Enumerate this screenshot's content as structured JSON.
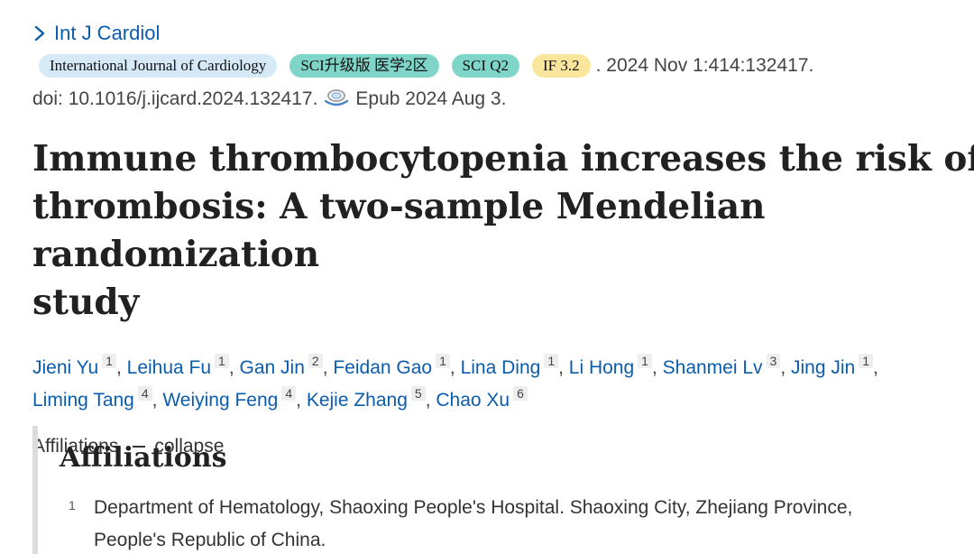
{
  "journal": {
    "short_name": "Int J Cardiol",
    "badges": {
      "full_name": "International Journal of Cardiology",
      "sci_zone": "SCI升级版 医学2区",
      "sci_quartile": "SCI Q2",
      "impact_factor": "IF 3.2"
    },
    "citation": ". 2024 Nov 1:414:132417.",
    "doi": "doi: 10.1016/j.ijcard.2024.132417.",
    "epub": "Epub 2024 Aug 3."
  },
  "article": {
    "title_line1": "Immune thrombocytopenia increases the risk of",
    "title_line2": "thrombosis: A two-sample Mendelian randomization",
    "title_line3": "study"
  },
  "authors": [
    {
      "name": "Jieni Yu",
      "aff": "1"
    },
    {
      "name": "Leihua Fu",
      "aff": "1"
    },
    {
      "name": "Gan Jin",
      "aff": "2"
    },
    {
      "name": "Feidan Gao",
      "aff": "1"
    },
    {
      "name": "Lina Ding",
      "aff": "1"
    },
    {
      "name": "Li Hong",
      "aff": "1"
    },
    {
      "name": "Shanmei Lv",
      "aff": "3"
    },
    {
      "name": "Jing Jin",
      "aff": "1"
    },
    {
      "name": "Liming Tang",
      "aff": "4"
    },
    {
      "name": "Weiying Feng",
      "aff": "4"
    },
    {
      "name": "Kejie Zhang",
      "aff": "5"
    },
    {
      "name": "Chao Xu",
      "aff": "6"
    }
  ],
  "separator": ", ",
  "affiliations_toggle": {
    "label": "Affiliations",
    "action": "collapse"
  },
  "affiliations": {
    "heading": "Affiliations",
    "items": [
      {
        "num": "1",
        "line1": "Department of Hematology, Shaoxing People's Hospital. Shaoxing City, Zhejiang Province,",
        "line2": "People's Republic of China."
      }
    ]
  },
  "colors": {
    "link": "#0b5cad",
    "badge_journal": "#d6e9f7",
    "badge_sci": "#7fd6c8",
    "badge_if": "#f9e59c"
  },
  "icons": {
    "journal_chevron": "chevron-right-icon",
    "pubmed": "pubmed-free-icon"
  }
}
